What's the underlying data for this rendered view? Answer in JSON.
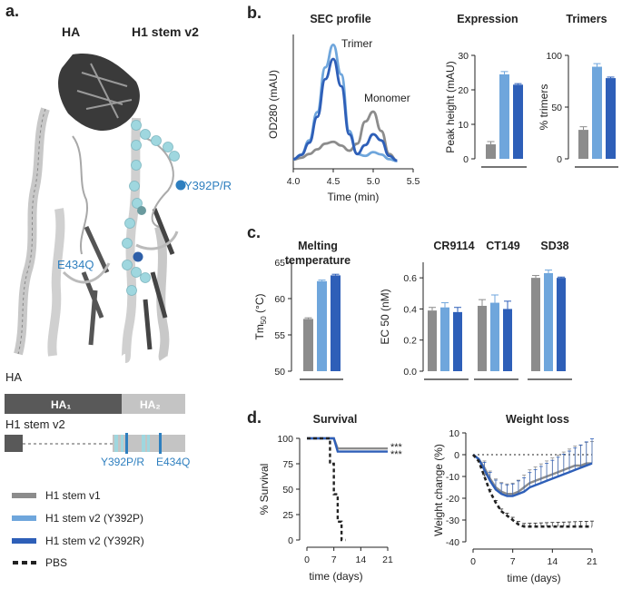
{
  "colors": {
    "gray": "#8c8c8c",
    "light_blue": "#6fa6dc",
    "dark_blue": "#2e5fb8",
    "black": "#222222",
    "cyan": "#9fd7df"
  },
  "panels": {
    "a": "a.",
    "b": "b.",
    "c": "c.",
    "d": "d."
  },
  "panel_a": {
    "title_ha": "HA",
    "title_stem": "H1 stem v2",
    "mut_y392": "Y392P/R",
    "mut_e434": "E434Q",
    "bar_ha_label": "HA",
    "bar_ha1": "HA₁",
    "bar_ha2": "HA₂",
    "bar_stem_label": "H1 stem v2",
    "bar_mut_y392": "Y392P/R",
    "bar_mut_e434": "E434Q"
  },
  "legend": [
    {
      "label": "H1 stem v1",
      "color": "#8c8c8c"
    },
    {
      "label": "H1 stem v2 (Y392P)",
      "color": "#6fa6dc"
    },
    {
      "label": "H1 stem v2 (Y392R)",
      "color": "#2e5fb8"
    },
    {
      "label": "PBS",
      "color": "#222222"
    }
  ],
  "chart_data": [
    {
      "id": "sec",
      "type": "line",
      "title": "SEC profile",
      "xlabel": "Time (min)",
      "ylabel": "OD280 (mAU)",
      "xlim": [
        4.0,
        5.5
      ],
      "xticks": [
        "4.0",
        "4.5",
        "5.0",
        "5.5"
      ],
      "annotations": [
        "Trimer",
        "Monomer"
      ],
      "series": [
        {
          "name": "H1 stem v1",
          "x": [
            4.0,
            4.1,
            4.2,
            4.3,
            4.4,
            4.5,
            4.6,
            4.7,
            4.8,
            4.9,
            5.0,
            5.1,
            5.2,
            5.3
          ],
          "y": [
            0.4,
            0.8,
            1.6,
            2.6,
            3.8,
            4.2,
            3.4,
            2.3,
            3.8,
            8.5,
            10.6,
            6.5,
            1.6,
            0.2
          ]
        },
        {
          "name": "H1 stem v2 (Y392P)",
          "x": [
            4.0,
            4.1,
            4.2,
            4.3,
            4.4,
            4.5,
            4.6,
            4.7,
            4.8,
            4.9,
            5.0,
            5.1,
            5.2,
            5.3
          ],
          "y": [
            0.5,
            1.5,
            4.5,
            10.5,
            20.0,
            24.8,
            18.5,
            6.5,
            1.6,
            1.2,
            2.0,
            1.5,
            0.5,
            0.1
          ]
        },
        {
          "name": "H1 stem v2 (Y392R)",
          "x": [
            4.0,
            4.1,
            4.2,
            4.3,
            4.4,
            4.5,
            4.6,
            4.7,
            4.8,
            4.9,
            5.0,
            5.1,
            5.2,
            5.3
          ],
          "y": [
            0.5,
            1.4,
            4.0,
            9.5,
            17.5,
            21.8,
            16.0,
            5.8,
            1.6,
            3.5,
            5.8,
            4.5,
            1.2,
            0.2
          ]
        }
      ]
    },
    {
      "id": "expression",
      "type": "bar",
      "title": "Expression",
      "ylabel": "Peak height (mAU)",
      "ylim": [
        0,
        30
      ],
      "yticks": [
        "0",
        "10",
        "20",
        "30"
      ],
      "categories": [
        "H1 stem v1",
        "H1 stem v2 (Y392P)",
        "H1 stem v2 (Y392R)"
      ],
      "values": [
        4.2,
        24.5,
        21.5
      ],
      "errors": [
        0.8,
        0.8,
        0.3
      ]
    },
    {
      "id": "trimers",
      "type": "bar",
      "title": "Trimers",
      "ylabel": "% trimers",
      "ylim": [
        0,
        100
      ],
      "yticks": [
        "0",
        "50",
        "100"
      ],
      "categories": [
        "H1 stem v1",
        "H1 stem v2 (Y392P)",
        "H1 stem v2 (Y392R)"
      ],
      "values": [
        28,
        89,
        78
      ],
      "errors": [
        3,
        3,
        1
      ]
    },
    {
      "id": "tm",
      "type": "bar",
      "title": "Melting temperature",
      "ylabel": "Tm50 (°C)",
      "ylim": [
        50,
        65
      ],
      "yticks": [
        "50",
        "55",
        "60",
        "65"
      ],
      "categories": [
        "H1 stem v1",
        "H1 stem v2 (Y392P)",
        "H1 stem v2 (Y392R)"
      ],
      "values": [
        57.2,
        62.4,
        63.2
      ],
      "errors": [
        0.15,
        0.15,
        0.15
      ]
    },
    {
      "id": "ec50",
      "type": "bar",
      "title": "",
      "ylabel": "EC 50 (nM)",
      "ylim": [
        0.0,
        0.7
      ],
      "yticks": [
        "0.0",
        "0.2",
        "0.4",
        "0.6"
      ],
      "groups": [
        "CR9114",
        "CT149",
        "SD38"
      ],
      "series": [
        {
          "name": "H1 stem v1",
          "values": [
            0.39,
            0.42,
            0.6
          ],
          "errors": [
            0.02,
            0.04,
            0.015
          ]
        },
        {
          "name": "H1 stem v2 (Y392P)",
          "values": [
            0.41,
            0.44,
            0.63
          ],
          "errors": [
            0.03,
            0.05,
            0.02
          ]
        },
        {
          "name": "H1 stem v2 (Y392R)",
          "values": [
            0.38,
            0.4,
            0.6
          ],
          "errors": [
            0.03,
            0.05,
            0.005
          ]
        }
      ]
    },
    {
      "id": "survival",
      "type": "line",
      "title": "Survival",
      "xlabel": "time (days)",
      "ylabel": "% Survival",
      "xlim": [
        0,
        21
      ],
      "ylim": [
        0,
        100
      ],
      "xticks": [
        "0",
        "7",
        "14",
        "21"
      ],
      "yticks": [
        "0",
        "25",
        "50",
        "75",
        "100"
      ],
      "significance": [
        "***",
        "***"
      ],
      "series": [
        {
          "name": "H1 stem v1",
          "x": [
            0,
            7,
            8,
            21
          ],
          "y": [
            100,
            100,
            90,
            90
          ]
        },
        {
          "name": "H1 stem v2 (Y392R)",
          "x": [
            0,
            7,
            8,
            21
          ],
          "y": [
            100,
            100,
            87,
            87
          ]
        },
        {
          "name": "PBS",
          "x": [
            0,
            6,
            6,
            7,
            7,
            8,
            8,
            9,
            9,
            10
          ],
          "y": [
            100,
            100,
            75,
            75,
            45,
            45,
            18,
            18,
            0,
            0
          ]
        }
      ]
    },
    {
      "id": "weight",
      "type": "line",
      "title": "Weight loss",
      "xlabel": "time (days)",
      "ylabel": "Weight change (%)",
      "xlim": [
        0,
        21
      ],
      "ylim": [
        -40,
        10
      ],
      "xticks": [
        "0",
        "7",
        "14",
        "21"
      ],
      "yticks": [
        "10",
        "0",
        "-10",
        "-20",
        "-30",
        "-40"
      ],
      "series": [
        {
          "name": "H1 stem v1",
          "x": [
            0,
            1,
            2,
            3,
            4,
            5,
            6,
            7,
            8,
            9,
            10,
            11,
            12,
            13,
            14,
            15,
            16,
            17,
            18,
            19,
            20,
            21
          ],
          "y": [
            0,
            -2,
            -6,
            -11,
            -15,
            -17,
            -18,
            -18,
            -17,
            -15,
            -13,
            -12,
            -11,
            -10,
            -9,
            -8,
            -7,
            -6,
            -5,
            -5,
            -4,
            -4
          ],
          "err": 8
        },
        {
          "name": "H1 stem v2 (Y392R)",
          "x": [
            0,
            1,
            2,
            3,
            4,
            5,
            6,
            7,
            8,
            9,
            10,
            11,
            12,
            13,
            14,
            15,
            16,
            17,
            18,
            19,
            20,
            21
          ],
          "y": [
            0,
            -2,
            -7,
            -12,
            -16,
            -18,
            -19,
            -19,
            -18,
            -17,
            -15,
            -14,
            -13,
            -12,
            -11,
            -10,
            -9,
            -8,
            -7,
            -6,
            -5,
            -4
          ],
          "err": 9
        },
        {
          "name": "PBS",
          "x": [
            0,
            1,
            2,
            3,
            4,
            5,
            6,
            7,
            8,
            9,
            10,
            11,
            12,
            13,
            14,
            15,
            16,
            17,
            18,
            19,
            20,
            21
          ],
          "y": [
            0,
            -3,
            -10,
            -17,
            -22,
            -26,
            -28,
            -30,
            -32,
            -33,
            -33,
            -33,
            -33,
            -33,
            -33,
            -33,
            -33,
            -33,
            -33,
            -33,
            -33,
            -33
          ],
          "err": 2
        }
      ]
    }
  ]
}
